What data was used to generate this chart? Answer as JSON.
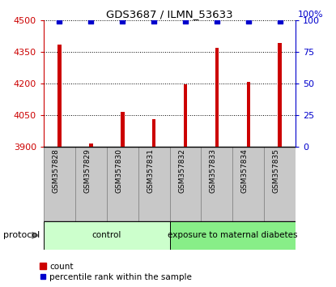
{
  "title": "GDS3687 / ILMN_53633",
  "samples": [
    "GSM357828",
    "GSM357829",
    "GSM357830",
    "GSM357831",
    "GSM357832",
    "GSM357833",
    "GSM357834",
    "GSM357835"
  ],
  "counts": [
    4385,
    3915,
    4065,
    4030,
    4195,
    4370,
    4205,
    4390
  ],
  "percentile_ranks": [
    99,
    99,
    99,
    99,
    99,
    99,
    99,
    99
  ],
  "ylim_left": [
    3900,
    4500
  ],
  "ylim_right": [
    0,
    100
  ],
  "yticks_left": [
    3900,
    4050,
    4200,
    4350,
    4500
  ],
  "yticks_right": [
    0,
    25,
    50,
    75,
    100
  ],
  "bar_color": "#cc0000",
  "dot_color": "#0000cc",
  "groups": [
    {
      "label": "control",
      "indices": [
        0,
        1,
        2,
        3
      ],
      "color": "#ccffcc"
    },
    {
      "label": "exposure to maternal diabetes",
      "indices": [
        4,
        5,
        6,
        7
      ],
      "color": "#88ee88"
    }
  ],
  "protocol_label": "protocol",
  "left_axis_color": "#cc0000",
  "right_axis_color": "#0000cc",
  "tick_label_area_color": "#c8c8c8",
  "cell_border_color": "#888888"
}
